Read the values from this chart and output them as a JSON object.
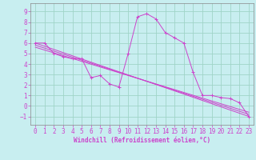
{
  "xlabel": "Windchill (Refroidissement éolien,°C)",
  "bg_color": "#c8eef0",
  "grid_color": "#a0d4c8",
  "line_color": "#cc44cc",
  "spine_color": "#888888",
  "xlim": [
    -0.5,
    23.5
  ],
  "ylim": [
    -1.8,
    9.8
  ],
  "xticks": [
    0,
    1,
    2,
    3,
    4,
    5,
    6,
    7,
    8,
    9,
    10,
    11,
    12,
    13,
    14,
    15,
    16,
    17,
    18,
    19,
    20,
    21,
    22,
    23
  ],
  "yticks": [
    -1,
    0,
    1,
    2,
    3,
    4,
    5,
    6,
    7,
    8,
    9
  ],
  "main_series": {
    "x": [
      0,
      1,
      2,
      3,
      4,
      5,
      6,
      7,
      8,
      9,
      10,
      11,
      12,
      13,
      14,
      15,
      16,
      17,
      18,
      19,
      20,
      21,
      22,
      23
    ],
    "y": [
      6.0,
      6.0,
      5.0,
      4.7,
      4.5,
      4.5,
      2.7,
      2.9,
      2.1,
      1.8,
      5.0,
      8.5,
      8.8,
      8.3,
      7.0,
      6.5,
      6.0,
      3.2,
      1.0,
      1.0,
      0.8,
      0.7,
      0.3,
      -1.0
    ]
  },
  "straight_lines": [
    {
      "x": [
        0,
        23
      ],
      "y": [
        6.0,
        -1.0
      ]
    },
    {
      "x": [
        0,
        23
      ],
      "y": [
        5.8,
        -0.8
      ]
    },
    {
      "x": [
        0,
        23
      ],
      "y": [
        5.6,
        -0.6
      ]
    }
  ],
  "xlabel_fontsize": 5.5,
  "tick_fontsize": 5.5
}
